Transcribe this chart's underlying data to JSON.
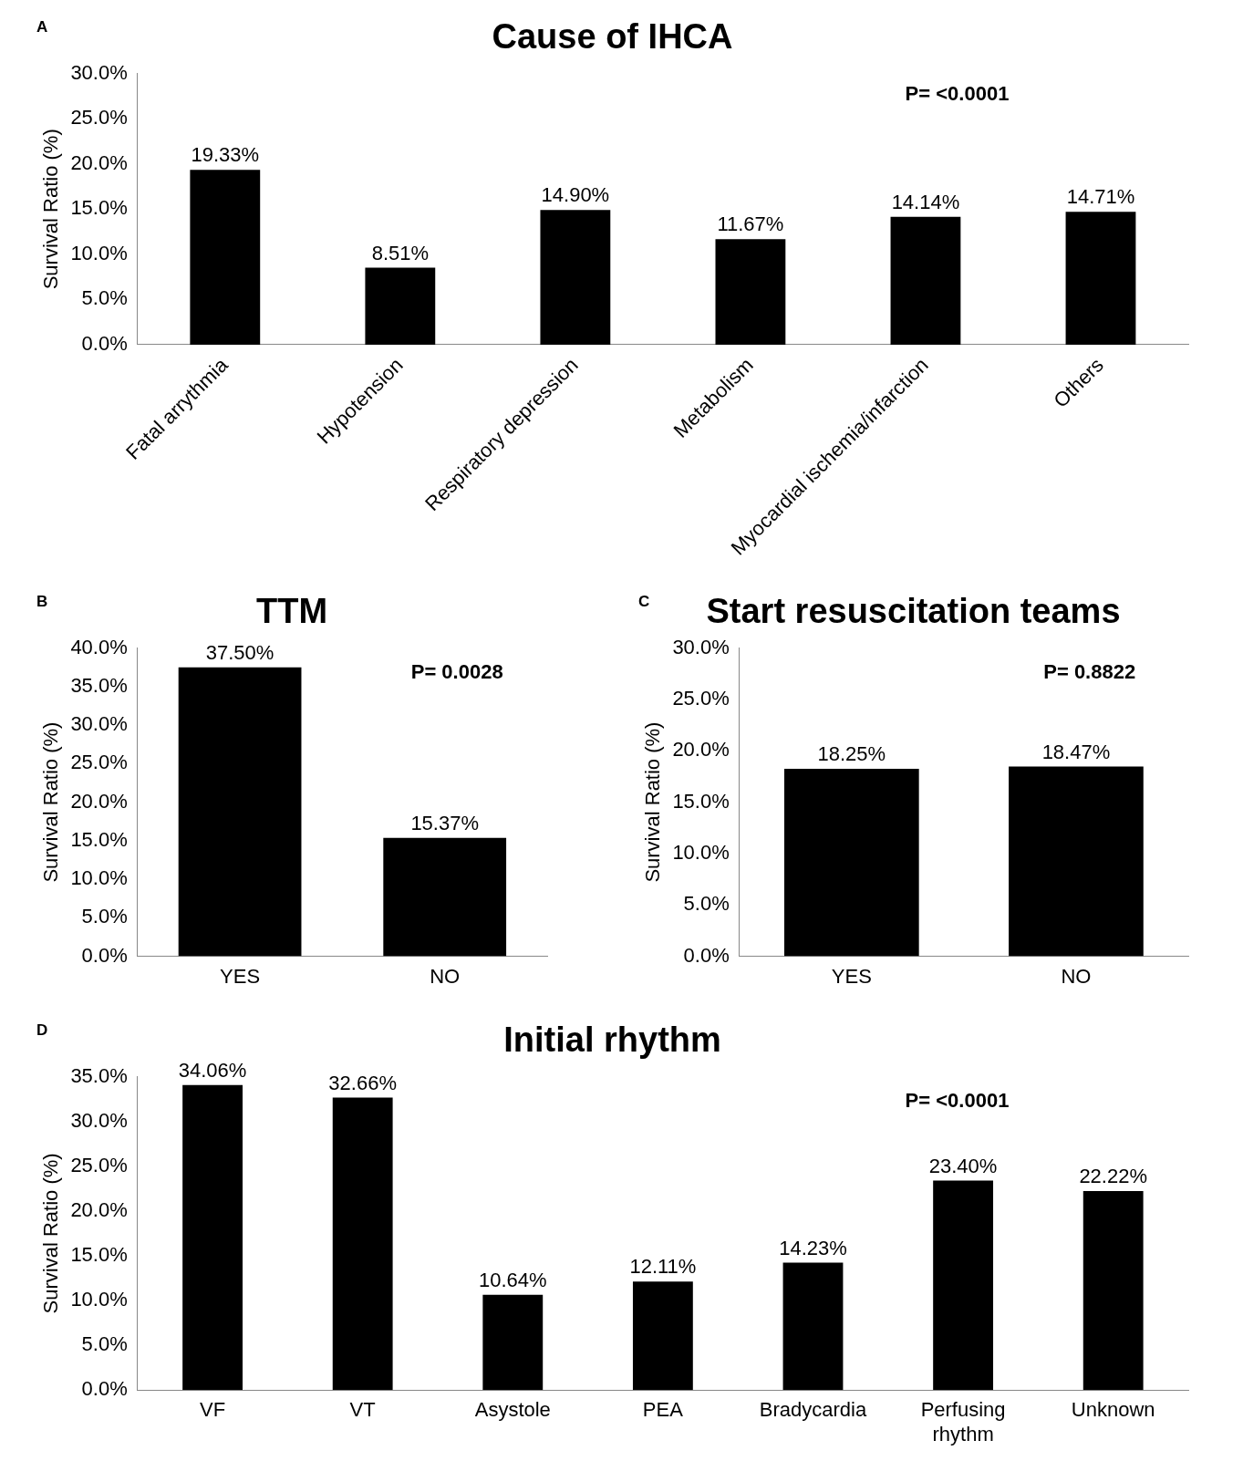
{
  "chart_data": [
    {
      "type": "bar",
      "title": "Cause of IHCA",
      "ylabel": "Survival Ratio (%)",
      "annotations": [
        "A",
        "P= <0.0001"
      ],
      "categories": [
        "Fatal arrythmia",
        "Hypotension",
        "Respiratory depression",
        "Metabolism",
        "Myocardial ischemia/infarction",
        "Others"
      ],
      "values": [
        19.33,
        8.51,
        14.9,
        11.67,
        14.14,
        14.71
      ],
      "value_labels": [
        "19.33%",
        "8.51%",
        "14.90%",
        "11.67%",
        "14.14%",
        "14.71%"
      ],
      "color": "#000000",
      "ylim": [
        0,
        30
      ],
      "yticks": [
        {
          "value": 0,
          "label": "0.0%"
        },
        {
          "value": 5,
          "label": "5.0%"
        },
        {
          "value": 10,
          "label": "10.0%"
        },
        {
          "value": 15,
          "label": "15.0%"
        },
        {
          "value": 20,
          "label": "20.0%"
        },
        {
          "value": 25,
          "label": "25.0%"
        },
        {
          "value": 30,
          "label": "30.0%"
        }
      ]
    },
    {
      "type": "bar",
      "title": "TTM",
      "ylabel": "Survival Ratio (%)",
      "annotations": [
        "B",
        "P= 0.0028"
      ],
      "categories": [
        "YES",
        "NO"
      ],
      "values": [
        37.5,
        15.37
      ],
      "value_labels": [
        "37.50%",
        "15.37%"
      ],
      "color": "#000000",
      "ylim": [
        0,
        40
      ],
      "yticks": [
        {
          "value": 0,
          "label": "0.0%"
        },
        {
          "value": 5,
          "label": "5.0%"
        },
        {
          "value": 10,
          "label": "10.0%"
        },
        {
          "value": 15,
          "label": "15.0%"
        },
        {
          "value": 20,
          "label": "20.0%"
        },
        {
          "value": 25,
          "label": "25.0%"
        },
        {
          "value": 30,
          "label": "30.0%"
        },
        {
          "value": 35,
          "label": "35.0%"
        },
        {
          "value": 40,
          "label": "40.0%"
        }
      ]
    },
    {
      "type": "bar",
      "title": "Start resuscitation teams",
      "ylabel": "Survival Ratio (%)",
      "annotations": [
        "C",
        "P= 0.8822"
      ],
      "categories": [
        "YES",
        "NO"
      ],
      "values": [
        18.25,
        18.47
      ],
      "value_labels": [
        "18.25%",
        "18.47%"
      ],
      "color": "#000000",
      "ylim": [
        0,
        30
      ],
      "yticks": [
        {
          "value": 0,
          "label": "0.0%"
        },
        {
          "value": 5,
          "label": "5.0%"
        },
        {
          "value": 10,
          "label": "10.0%"
        },
        {
          "value": 15,
          "label": "15.0%"
        },
        {
          "value": 20,
          "label": "20.0%"
        },
        {
          "value": 25,
          "label": "25.0%"
        },
        {
          "value": 30,
          "label": "30.0%"
        }
      ]
    },
    {
      "type": "bar",
      "title": "Initial rhythm",
      "ylabel": "Survival Ratio (%)",
      "annotations": [
        "D",
        "P= <0.0001"
      ],
      "categories": [
        "VF",
        "VT",
        "Asystole",
        "PEA",
        "Bradycardia",
        "Perfusing rhythm",
        "Unknown"
      ],
      "values": [
        34.06,
        32.66,
        10.64,
        12.11,
        14.23,
        23.4,
        22.22
      ],
      "value_labels": [
        "34.06%",
        "32.66%",
        "10.64%",
        "12.11%",
        "14.23%",
        "23.40%",
        "22.22%"
      ],
      "color": "#000000",
      "ylim": [
        0,
        35
      ],
      "yticks": [
        {
          "value": 0,
          "label": "0.0%"
        },
        {
          "value": 5,
          "label": "5.0%"
        },
        {
          "value": 10,
          "label": "10.0%"
        },
        {
          "value": 15,
          "label": "15.0%"
        },
        {
          "value": 20,
          "label": "20.0%"
        },
        {
          "value": 25,
          "label": "25.0%"
        },
        {
          "value": 30,
          "label": "30.0%"
        },
        {
          "value": 35,
          "label": "35.0%"
        }
      ]
    }
  ]
}
